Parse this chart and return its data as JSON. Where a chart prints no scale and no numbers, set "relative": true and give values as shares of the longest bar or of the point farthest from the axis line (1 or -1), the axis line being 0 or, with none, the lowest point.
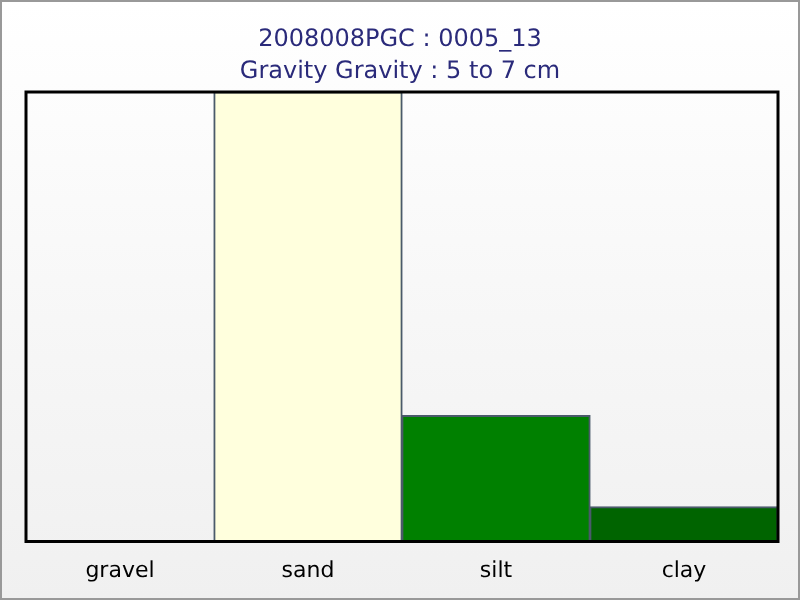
{
  "chart_data": {
    "type": "bar",
    "title": "2008008PGC : 0005_13",
    "subtitle": "Gravity Gravity  : 5 to 7 cm",
    "categories": [
      "gravel",
      "sand",
      "silt",
      "clay"
    ],
    "values": [
      0,
      1,
      0.28,
      0.077
    ],
    "colors": [
      "#808080",
      "#ffffdd",
      "#008000",
      "#006400"
    ],
    "relative": true,
    "grid": false,
    "legend": false
  }
}
